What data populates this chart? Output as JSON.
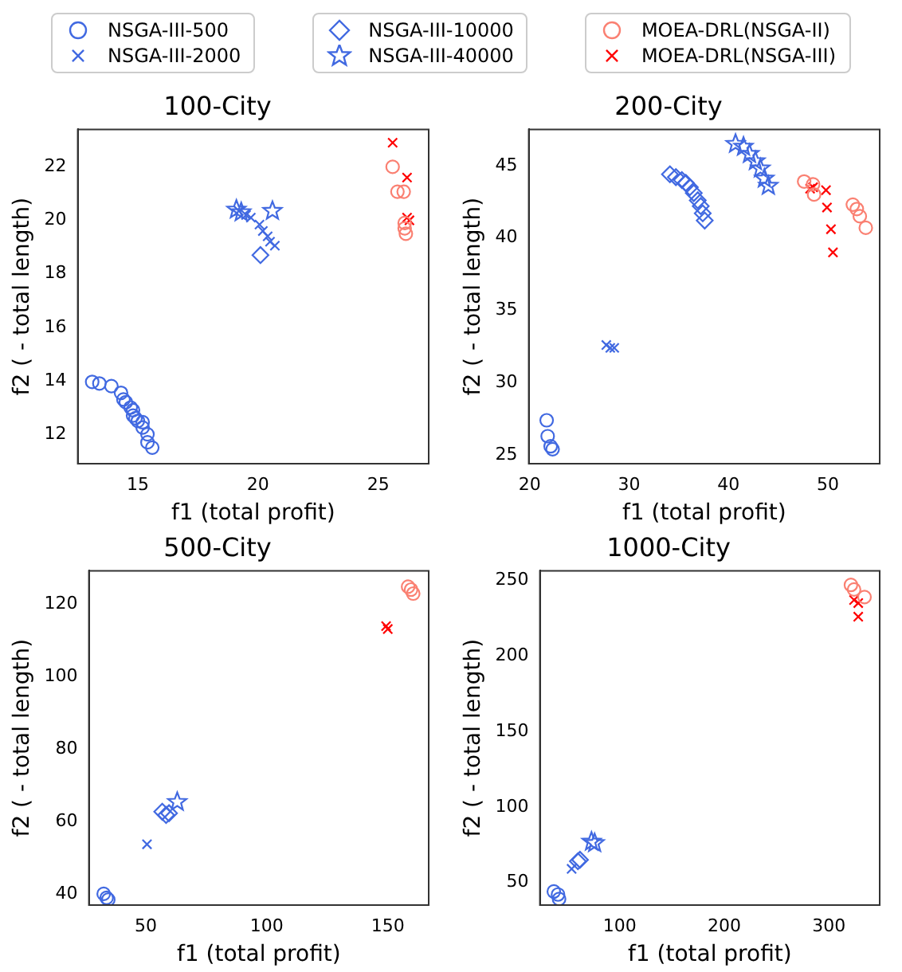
{
  "chart_data": [
    {
      "type": "scatter",
      "title": "100-City",
      "xlabel": "f1 (total profit)",
      "ylabel": "f2 ( - total length)",
      "xlim": [
        12.5,
        27.1
      ],
      "ylim": [
        10.9,
        23.4
      ],
      "xticks": [
        15,
        20,
        25
      ],
      "yticks": [
        12,
        14,
        16,
        18,
        20,
        22
      ],
      "grid": false,
      "legend": "top",
      "series": [
        {
          "name": "NSGA-III-500",
          "color": "#4169e1",
          "marker": "circle",
          "x": [
            13.1,
            13.4,
            13.9,
            14.3,
            14.4,
            14.5,
            14.7,
            14.8,
            14.8,
            14.9,
            15.0,
            15.2,
            15.2,
            15.4,
            15.4,
            15.6
          ],
          "values": [
            13.96,
            13.9,
            13.8,
            13.55,
            13.3,
            13.2,
            13.0,
            12.9,
            12.7,
            12.6,
            12.5,
            12.45,
            12.25,
            12.0,
            11.7,
            11.5
          ]
        },
        {
          "name": "NSGA-III-2000",
          "color": "#4169e1",
          "marker": "cross",
          "x": [
            19.2,
            19.5,
            19.7,
            20.06,
            20.2,
            20.4,
            20.5,
            20.7
          ],
          "values": [
            20.35,
            20.2,
            20.1,
            19.84,
            19.6,
            19.4,
            19.2,
            19.05
          ]
        },
        {
          "name": "NSGA-III-10000",
          "color": "#4169e1",
          "marker": "diamond",
          "x": [
            20.1
          ],
          "values": [
            18.7
          ]
        },
        {
          "name": "NSGA-III-40000",
          "color": "#4169e1",
          "marker": "star",
          "x": [
            19.1,
            19.3,
            20.6
          ],
          "values": [
            20.4,
            20.3,
            20.35
          ]
        },
        {
          "name": "MOEA-DRL(NSGA-II)",
          "color": "#fa8072",
          "marker": "circle",
          "x": [
            25.6,
            25.8,
            26.06,
            26.1,
            26.15,
            26.1
          ],
          "values": [
            22.0,
            21.07,
            21.07,
            19.7,
            19.5,
            19.9
          ]
        },
        {
          "name": "MOEA-DRL(NSGA-III)",
          "color": "#ff0000",
          "marker": "cross",
          "x": [
            25.6,
            26.2,
            26.2,
            26.3
          ],
          "values": [
            22.9,
            21.6,
            20.1,
            20.0
          ]
        }
      ]
    },
    {
      "type": "scatter",
      "title": "200-City",
      "xlabel": "f1 (total profit)",
      "ylabel": "f2 ( - total length)",
      "xlim": [
        19.9,
        55.2
      ],
      "ylim": [
        24.4,
        47.5
      ],
      "xticks": [
        20,
        30,
        40,
        50
      ],
      "yticks": [
        25,
        30,
        35,
        40,
        45
      ],
      "grid": false,
      "series": [
        {
          "name": "NSGA-III-500",
          "color": "#4169e1",
          "marker": "circle",
          "x": [
            21.7,
            21.8,
            22.1,
            22.3
          ],
          "values": [
            27.4,
            26.3,
            25.6,
            25.4
          ]
        },
        {
          "name": "NSGA-III-2000",
          "color": "#4169e1",
          "marker": "cross",
          "x": [
            27.7,
            28.1,
            28.5
          ],
          "values": [
            32.6,
            32.4,
            32.4
          ]
        },
        {
          "name": "NSGA-III-10000",
          "color": "#4169e1",
          "marker": "diamond",
          "x": [
            34.1,
            34.7,
            35.3,
            35.7,
            36.1,
            36.5,
            36.9,
            37.2,
            37.4,
            37.6
          ],
          "values": [
            44.4,
            44.2,
            44.0,
            43.8,
            43.5,
            43.1,
            42.6,
            42.2,
            41.7,
            41.2
          ]
        },
        {
          "name": "NSGA-III-40000",
          "color": "#4169e1",
          "marker": "star",
          "x": [
            40.7,
            41.5,
            42.1,
            42.7,
            43.2,
            43.6,
            44.0
          ],
          "values": [
            46.5,
            46.3,
            45.8,
            45.3,
            44.8,
            44.1,
            43.6
          ]
        },
        {
          "name": "MOEA-DRL(NSGA-II)",
          "color": "#fa8072",
          "marker": "circle",
          "x": [
            47.6,
            48.5,
            48.6,
            52.5,
            52.9,
            53.2,
            53.8
          ],
          "values": [
            43.9,
            43.7,
            43.0,
            42.3,
            42.0,
            41.5,
            40.7
          ]
        },
        {
          "name": "MOEA-DRL(NSGA-III)",
          "color": "#ff0000",
          "marker": "cross",
          "x": [
            48.2,
            48.5,
            49.8,
            49.9,
            50.3,
            50.5
          ],
          "values": [
            43.4,
            43.5,
            43.3,
            42.1,
            40.6,
            39.0
          ]
        }
      ]
    },
    {
      "type": "scatter",
      "title": "500-City",
      "xlabel": "f1 (total profit)",
      "ylabel": "f2 ( - total length)",
      "xlim": [
        26.5,
        166.9
      ],
      "ylim": [
        36.9,
        129.3
      ],
      "xticks": [
        50,
        100,
        150
      ],
      "yticks": [
        40,
        60,
        80,
        100,
        120
      ],
      "grid": false,
      "series": [
        {
          "name": "NSGA-III-500",
          "color": "#4169e1",
          "marker": "circle",
          "x": [
            32.6,
            33.8,
            34.5
          ],
          "values": [
            40,
            38.9,
            38.4
          ]
        },
        {
          "name": "NSGA-III-2000",
          "color": "#4169e1",
          "marker": "cross",
          "x": [
            50.5
          ],
          "values": [
            53.7
          ]
        },
        {
          "name": "NSGA-III-10000",
          "color": "#4169e1",
          "marker": "diamond",
          "x": [
            56.8,
            58.4,
            59.6
          ],
          "values": [
            62.7,
            61.8,
            62.3
          ]
        },
        {
          "name": "NSGA-III-40000",
          "color": "#4169e1",
          "marker": "star",
          "x": [
            63
          ],
          "values": [
            65.4
          ]
        },
        {
          "name": "MOEA-DRL(NSGA-II)",
          "color": "#fa8072",
          "marker": "circle",
          "x": [
            158.4,
            159.6,
            160.5
          ],
          "values": [
            124.9,
            124.1,
            123.0
          ]
        },
        {
          "name": "MOEA-DRL(NSGA-III)",
          "color": "#ff0000",
          "marker": "cross",
          "x": [
            149.3,
            150
          ],
          "values": [
            114,
            113.2
          ]
        }
      ]
    },
    {
      "type": "scatter",
      "title": "1000-City",
      "xlabel": "f1 (total profit)",
      "ylabel": "f2 ( - total length)",
      "xlim": [
        23.7,
        348.5
      ],
      "ylim": [
        35,
        256.4
      ],
      "xticks": [
        100,
        200,
        300
      ],
      "yticks": [
        50,
        100,
        150,
        200,
        250
      ],
      "grid": false,
      "series": [
        {
          "name": "NSGA-III-500",
          "color": "#4169e1",
          "marker": "circle",
          "x": [
            37,
            41,
            42
          ],
          "values": [
            44,
            42,
            39
          ]
        },
        {
          "name": "NSGA-III-2000",
          "color": "#4169e1",
          "marker": "cross",
          "x": [
            54
          ],
          "values": [
            59
          ]
        },
        {
          "name": "NSGA-III-10000",
          "color": "#4169e1",
          "marker": "diamond",
          "x": [
            60,
            62
          ],
          "values": [
            64,
            65
          ]
        },
        {
          "name": "NSGA-III-40000",
          "color": "#4169e1",
          "marker": "star",
          "x": [
            73,
            76
          ],
          "values": [
            77,
            76
          ]
        },
        {
          "name": "MOEA-DRL(NSGA-II)",
          "color": "#fa8072",
          "marker": "circle",
          "x": [
            321,
            324,
            334
          ],
          "values": [
            247,
            244,
            239
          ]
        },
        {
          "name": "MOEA-DRL(NSGA-III)",
          "color": "#ff0000",
          "marker": "cross",
          "x": [
            324,
            328,
            328
          ],
          "values": [
            237,
            235,
            226
          ]
        }
      ]
    }
  ]
}
